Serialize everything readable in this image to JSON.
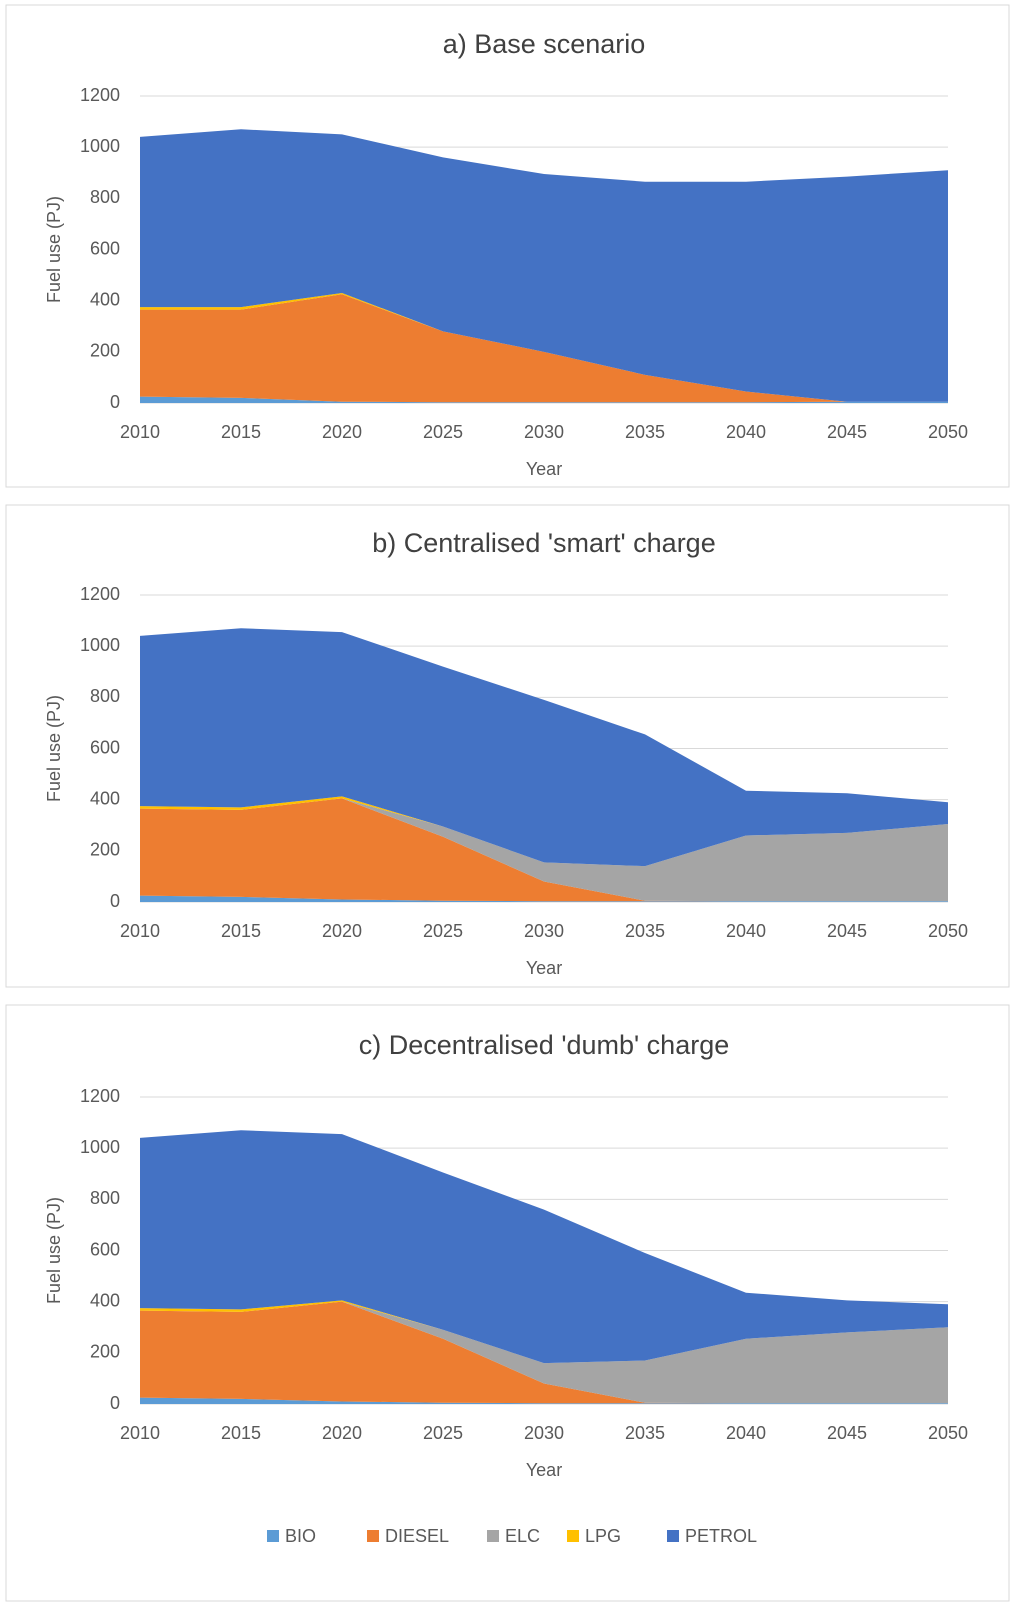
{
  "chart_data": [
    {
      "type": "area",
      "title": "a) Base scenario",
      "xlabel": "Year",
      "ylabel": "Fuel use (PJ)",
      "x": [
        2010,
        2015,
        2020,
        2025,
        2030,
        2035,
        2040,
        2045,
        2050
      ],
      "xlim": [
        2010,
        2050
      ],
      "xticks": [
        2010,
        2015,
        2020,
        2025,
        2030,
        2035,
        2040,
        2045,
        2050
      ],
      "ylim": [
        0,
        1200
      ],
      "yticks": [
        0,
        200,
        400,
        600,
        800,
        1000,
        1200
      ],
      "grid": true,
      "stacked": true,
      "series": [
        {
          "name": "BIO",
          "color": "#5b9bd5",
          "values": [
            25,
            20,
            5,
            3,
            3,
            3,
            3,
            5,
            5
          ]
        },
        {
          "name": "DIESEL",
          "color": "#ed7d31",
          "values": [
            340,
            345,
            420,
            277,
            197,
            107,
            42,
            0,
            0
          ]
        },
        {
          "name": "ELC",
          "color": "#a5a5a5",
          "values": [
            0,
            0,
            0,
            0,
            0,
            0,
            0,
            0,
            0
          ]
        },
        {
          "name": "LPG",
          "color": "#ffc000",
          "values": [
            10,
            10,
            5,
            0,
            0,
            0,
            0,
            0,
            0
          ]
        },
        {
          "name": "PETROL",
          "color": "#4472c4",
          "values": [
            665,
            695,
            620,
            680,
            695,
            755,
            820,
            880,
            905
          ]
        }
      ]
    },
    {
      "type": "area",
      "title": "b) Centralised 'smart' charge",
      "xlabel": "Year",
      "ylabel": "Fuel use (PJ)",
      "x": [
        2010,
        2015,
        2020,
        2025,
        2030,
        2035,
        2040,
        2045,
        2050
      ],
      "xlim": [
        2010,
        2050
      ],
      "xticks": [
        2010,
        2015,
        2020,
        2025,
        2030,
        2035,
        2040,
        2045,
        2050
      ],
      "ylim": [
        0,
        1200
      ],
      "yticks": [
        0,
        200,
        400,
        600,
        800,
        1000,
        1200
      ],
      "grid": true,
      "stacked": true,
      "series": [
        {
          "name": "BIO",
          "color": "#5b9bd5",
          "values": [
            25,
            20,
            10,
            5,
            3,
            3,
            3,
            3,
            3
          ]
        },
        {
          "name": "DIESEL",
          "color": "#ed7d31",
          "values": [
            340,
            340,
            395,
            250,
            77,
            2,
            0,
            0,
            0
          ]
        },
        {
          "name": "ELC",
          "color": "#a5a5a5",
          "values": [
            0,
            0,
            0,
            40,
            75,
            135,
            257,
            267,
            302
          ]
        },
        {
          "name": "LPG",
          "color": "#ffc000",
          "values": [
            10,
            10,
            8,
            0,
            0,
            0,
            0,
            0,
            0
          ]
        },
        {
          "name": "PETROL",
          "color": "#4472c4",
          "values": [
            665,
            700,
            642,
            625,
            635,
            515,
            175,
            155,
            85
          ]
        }
      ]
    },
    {
      "type": "area",
      "title": "c) Decentralised 'dumb' charge",
      "xlabel": "Year",
      "ylabel": "Fuel use (PJ)",
      "x": [
        2010,
        2015,
        2020,
        2025,
        2030,
        2035,
        2040,
        2045,
        2050
      ],
      "xlim": [
        2010,
        2050
      ],
      "xticks": [
        2010,
        2015,
        2020,
        2025,
        2030,
        2035,
        2040,
        2045,
        2050
      ],
      "ylim": [
        0,
        1200
      ],
      "yticks": [
        0,
        200,
        400,
        600,
        800,
        1000,
        1200
      ],
      "grid": true,
      "stacked": true,
      "legend": "bottom",
      "series": [
        {
          "name": "BIO",
          "color": "#5b9bd5",
          "values": [
            25,
            20,
            10,
            5,
            3,
            3,
            3,
            3,
            3
          ]
        },
        {
          "name": "DIESEL",
          "color": "#ed7d31",
          "values": [
            340,
            340,
            390,
            250,
            77,
            2,
            0,
            0,
            0
          ]
        },
        {
          "name": "ELC",
          "color": "#a5a5a5",
          "values": [
            0,
            0,
            0,
            35,
            80,
            165,
            252,
            277,
            297
          ]
        },
        {
          "name": "LPG",
          "color": "#ffc000",
          "values": [
            10,
            10,
            5,
            0,
            0,
            0,
            0,
            0,
            0
          ]
        },
        {
          "name": "PETROL",
          "color": "#4472c4",
          "values": [
            665,
            700,
            650,
            615,
            600,
            420,
            180,
            125,
            90
          ]
        }
      ]
    }
  ]
}
